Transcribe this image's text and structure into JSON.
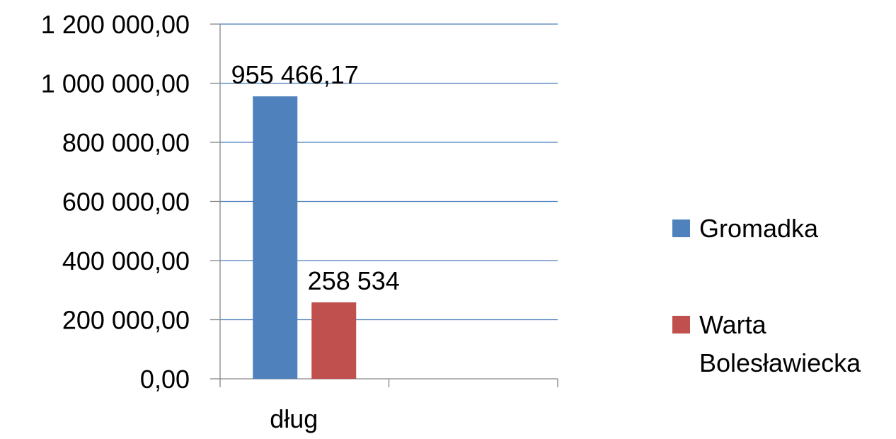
{
  "chart_data": {
    "type": "bar",
    "title": "",
    "xlabel": "",
    "ylabel": "",
    "categories": [
      "dług"
    ],
    "series": [
      {
        "name": "Gromadka",
        "values": [
          955466.17
        ],
        "label": "955 466,17",
        "color": "#4F81BD"
      },
      {
        "name": "Warta Bolesławiecka",
        "name_lines": [
          "Warta",
          "Bolesławiecka"
        ],
        "values": [
          258534
        ],
        "label": "258 534",
        "color": "#C0504D"
      }
    ],
    "ylim": [
      0,
      1200000
    ],
    "yticks": [
      {
        "value": 0,
        "label": "0,00"
      },
      {
        "value": 200000,
        "label": "200 000,00"
      },
      {
        "value": 400000,
        "label": "400 000,00"
      },
      {
        "value": 600000,
        "label": "600 000,00"
      },
      {
        "value": 800000,
        "label": "800 000,00"
      },
      {
        "value": 1000000,
        "label": "1 000 000,00"
      },
      {
        "value": 1200000,
        "label": "1 200 000,00"
      }
    ],
    "x_slots": 2,
    "grid": true,
    "grid_color": "#4A7EBB",
    "legend_position": "right"
  }
}
